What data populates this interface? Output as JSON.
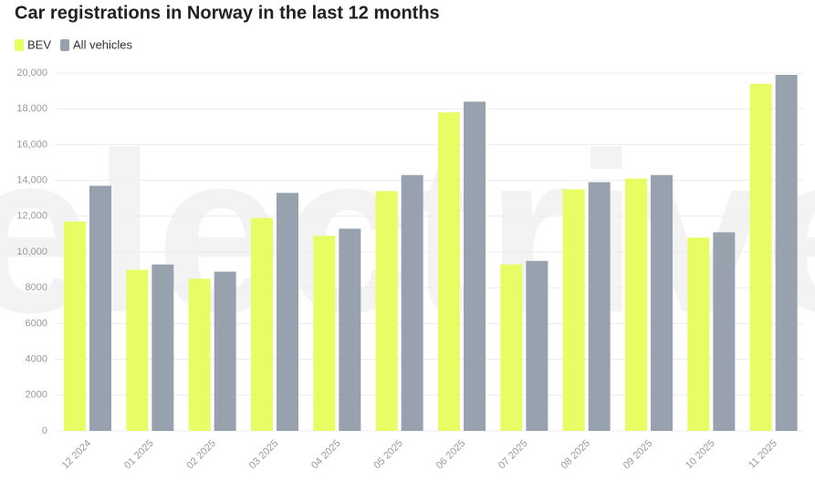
{
  "chart_data": {
    "type": "bar",
    "title": "Car registrations in Norway in the last 12 months",
    "watermark": "electrive",
    "categories": [
      "12 2024",
      "01 2025",
      "02 2025",
      "03 2025",
      "04 2025",
      "05 2025",
      "06 2025",
      "07 2025",
      "08 2025",
      "09 2025",
      "10 2025",
      "11 2025"
    ],
    "series": [
      {
        "name": "BEV",
        "color": "#e8fc63",
        "values": [
          11700,
          9000,
          8500,
          11900,
          10900,
          13400,
          17800,
          9300,
          13500,
          14100,
          10800,
          19400
        ]
      },
      {
        "name": "All vehicles",
        "color": "#98a2ae",
        "values": [
          13700,
          9300,
          8900,
          13300,
          11300,
          14300,
          18400,
          9500,
          13900,
          14300,
          11100,
          19900
        ]
      }
    ],
    "ylim": [
      0,
      20000
    ],
    "yticks": [
      0,
      2000,
      4000,
      6000,
      8000,
      {
        "value": 10000,
        "label": "10,000"
      },
      {
        "value": 12000,
        "label": "12,000"
      },
      {
        "value": 14000,
        "label": "14,000"
      },
      {
        "value": 16000,
        "label": "16,000"
      },
      {
        "value": 18000,
        "label": "18,000"
      },
      {
        "value": 20000,
        "label": "20,000"
      }
    ],
    "grid": true
  }
}
